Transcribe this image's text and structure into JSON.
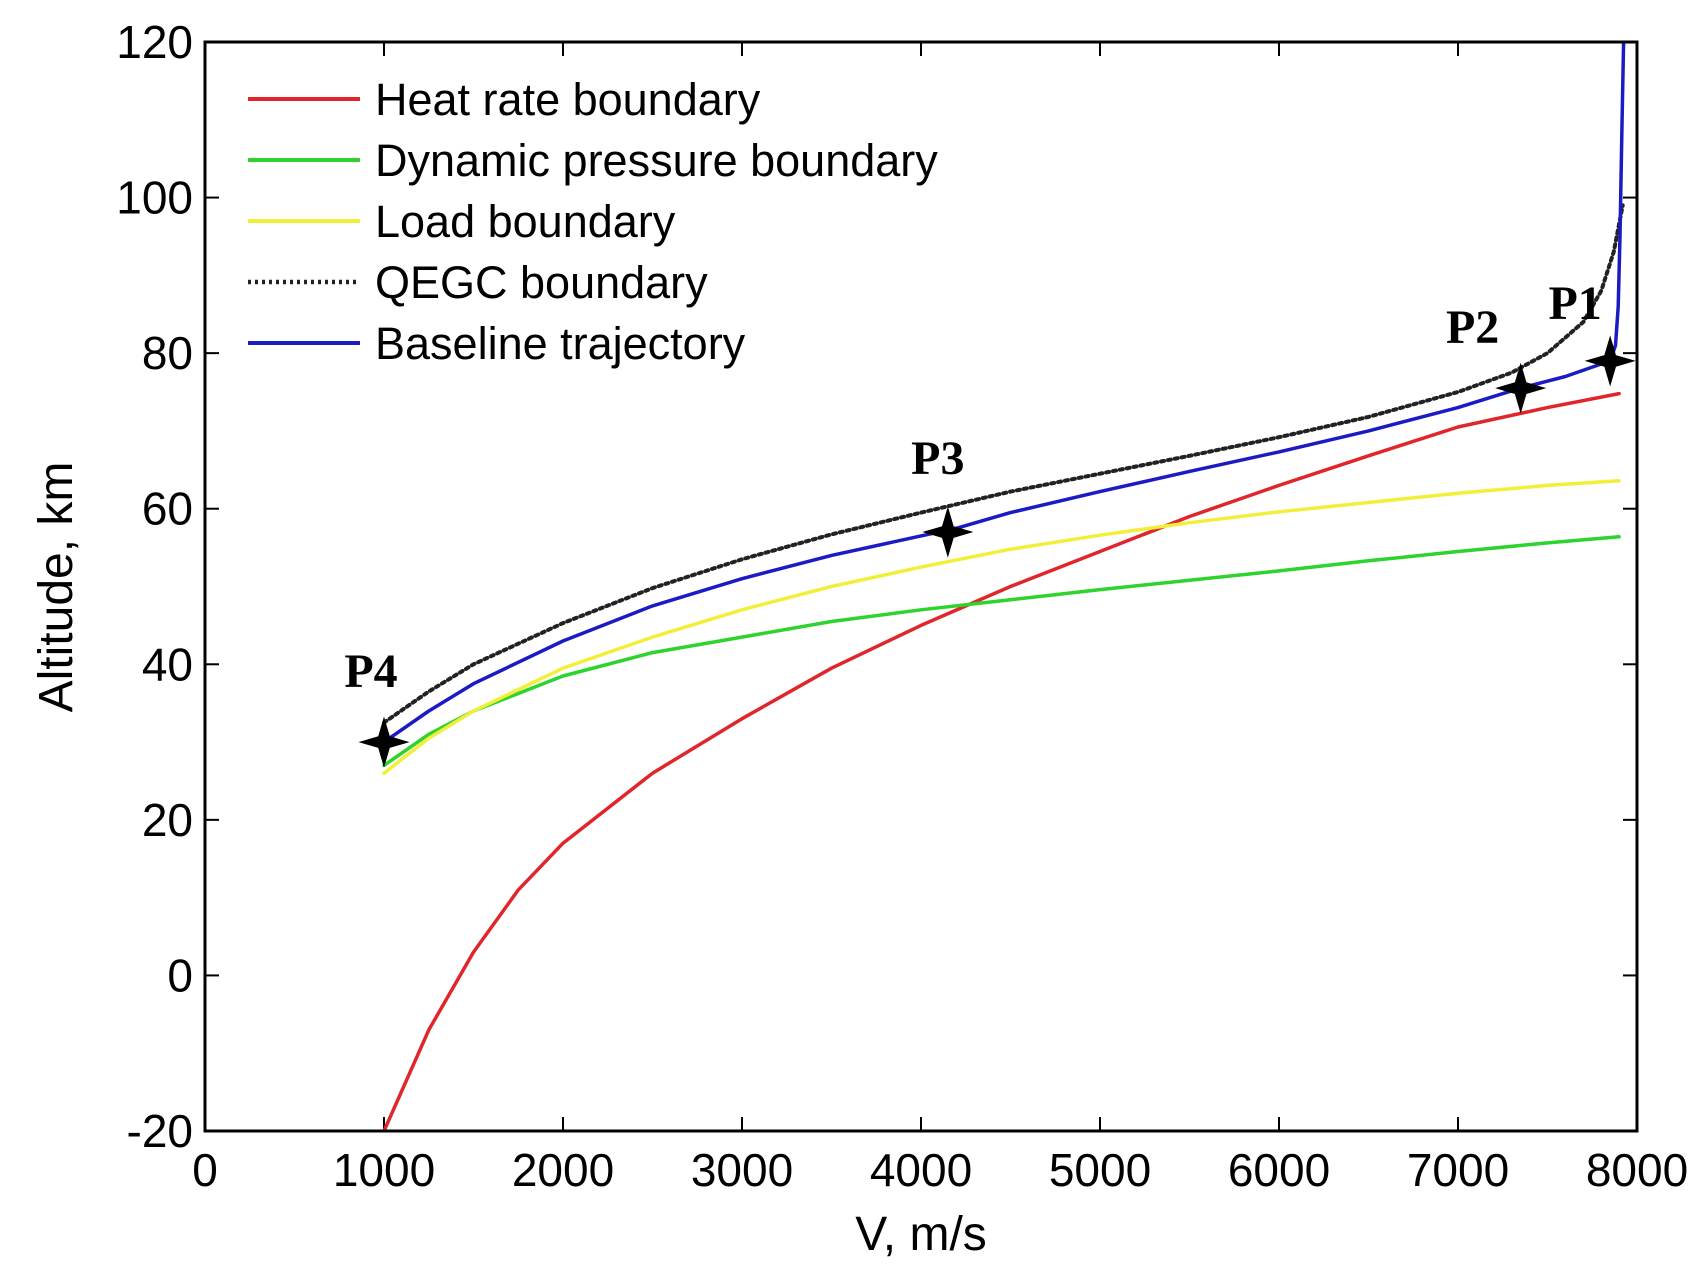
{
  "chart_data": {
    "type": "line",
    "title": "",
    "xlabel": "V, m/s",
    "ylabel": "Altitude, km",
    "xlim": [
      0,
      8000
    ],
    "ylim": [
      -20,
      120
    ],
    "xticks": [
      0,
      1000,
      2000,
      3000,
      4000,
      5000,
      6000,
      7000,
      8000
    ],
    "yticks": [
      -20,
      0,
      20,
      40,
      60,
      80,
      100,
      120
    ],
    "grid": false,
    "legend_position": "top-left",
    "series": [
      {
        "name": "Heat rate boundary",
        "color": "#e0262b",
        "style": "solid",
        "x": [
          1000,
          1250,
          1500,
          1750,
          2000,
          2500,
          3000,
          3500,
          4000,
          4500,
          5000,
          5500,
          6000,
          6500,
          7000,
          7500,
          7900
        ],
        "y": [
          -20,
          -7,
          3,
          11,
          17,
          26,
          33,
          39.5,
          45,
          50,
          54.5,
          59,
          63,
          66.8,
          70.5,
          73,
          74.8
        ]
      },
      {
        "name": "Dynamic pressure boundary",
        "color": "#2ed32e",
        "style": "solid",
        "x": [
          1000,
          1250,
          1500,
          2000,
          2500,
          3000,
          3500,
          4000,
          4500,
          5000,
          5500,
          6000,
          6500,
          7000,
          7500,
          7900
        ],
        "y": [
          27,
          31,
          34,
          38.5,
          41.5,
          43.5,
          45.5,
          47,
          48.3,
          49.6,
          50.8,
          52,
          53.3,
          54.5,
          55.6,
          56.4
        ]
      },
      {
        "name": "Load boundary",
        "color": "#f2ef3a",
        "style": "solid",
        "x": [
          1000,
          1250,
          1500,
          2000,
          2500,
          3000,
          3500,
          4000,
          4500,
          5000,
          5500,
          6000,
          6500,
          7000,
          7500,
          7900
        ],
        "y": [
          26,
          30.5,
          34,
          39.5,
          43.5,
          47,
          50,
          52.5,
          54.8,
          56.6,
          58.2,
          59.6,
          60.8,
          62,
          63,
          63.6
        ]
      },
      {
        "name": "QEGC boundary",
        "color": "#222222",
        "style": "dotted",
        "x": [
          1000,
          1250,
          1500,
          2000,
          2500,
          3000,
          3500,
          4000,
          4500,
          5000,
          5500,
          6000,
          6500,
          7000,
          7300,
          7500,
          7700,
          7800,
          7870,
          7920
        ],
        "y": [
          32.5,
          36.5,
          40,
          45.3,
          49.8,
          53.5,
          56.7,
          59.5,
          62.2,
          64.5,
          66.8,
          69.2,
          71.8,
          75,
          77.5,
          80,
          84,
          88,
          93,
          99
        ]
      },
      {
        "name": "Baseline trajectory",
        "color": "#1b1bc4",
        "style": "solid",
        "x": [
          1000,
          1250,
          1500,
          2000,
          2500,
          3000,
          3500,
          4000,
          4200,
          4500,
          5000,
          5500,
          6000,
          6500,
          7000,
          7350,
          7600,
          7850,
          7880,
          7895,
          7905,
          7915,
          7925
        ],
        "y": [
          30,
          34,
          37.5,
          43,
          47.5,
          51,
          54,
          56.5,
          57.5,
          59.5,
          62.2,
          64.8,
          67.3,
          70,
          73,
          75.5,
          77,
          79,
          81,
          86,
          95,
          108,
          120
        ]
      }
    ],
    "points": [
      {
        "label": "P1",
        "x": 7850,
        "y": 79
      },
      {
        "label": "P2",
        "x": 7350,
        "y": 75.5
      },
      {
        "label": "P3",
        "x": 4150,
        "y": 57
      },
      {
        "label": "P4",
        "x": 1000,
        "y": 30
      }
    ]
  }
}
